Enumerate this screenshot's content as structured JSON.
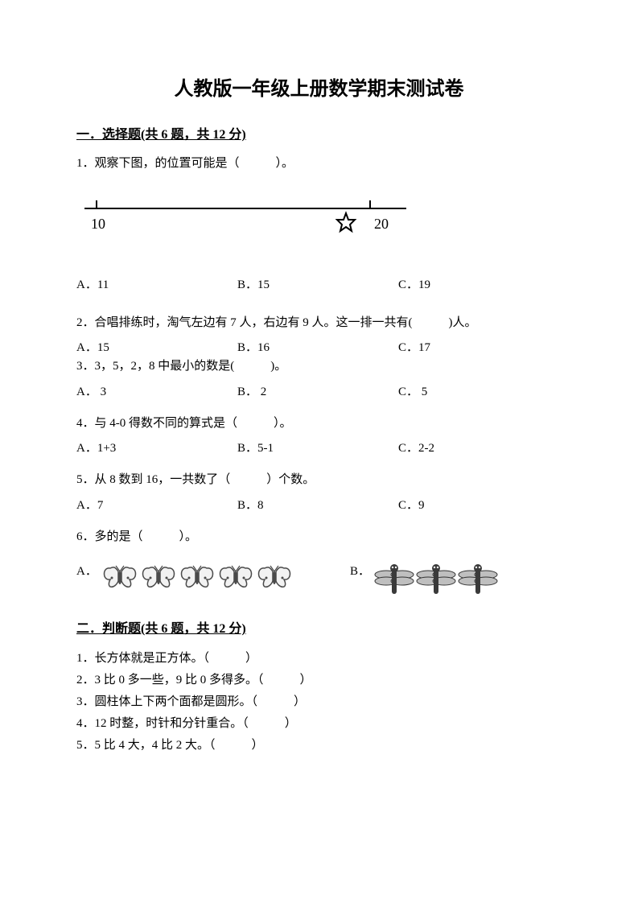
{
  "title": "人教版一年级上册数学期末测试卷",
  "section1": {
    "head_main": "一．选择题",
    "head_paren": "(共 6 题，共 12 分)",
    "q1": {
      "text": "1．观察下图，的位置可能是（　　　）。",
      "numline": {
        "left_label": "10",
        "right_label": "20"
      },
      "A": "A．11",
      "B": "B．15",
      "C": "C．19"
    },
    "q2": {
      "text": "2．合唱排练时，淘气左边有 7 人，右边有 9 人。这一排一共有(　　　)人。",
      "A": "A．15",
      "B": "B．16",
      "C": "C．17"
    },
    "q3": {
      "text": "3．3，5，2，8 中最小的数是(　　　)。",
      "A": "A． 3",
      "B": "B． 2",
      "C": "C． 5"
    },
    "q4": {
      "text": "4．与 4-0 得数不同的算式是（　　　）。",
      "A": "A．1+3",
      "B": "B．5-1",
      "C": "C．2-2"
    },
    "q5": {
      "text": "5．从 8 数到 16，一共数了（　　　）个数。",
      "A": "A．7",
      "B": "B．8",
      "C": "C．9"
    },
    "q6": {
      "text": "6．多的是（　　　）。",
      "A": "A．",
      "B": "B．",
      "butterfly_count": 5,
      "dragonfly_count": 3
    }
  },
  "section2": {
    "head_main": "二．判断题",
    "head_paren": "(共 6 题，共 12 分)",
    "items": [
      "1．长方体就是正方体。（　　　）",
      "2．3 比 0 多一些，9 比 0 多得多。（　　　）",
      "3．圆柱体上下两个面都是圆形。（　　　）",
      "4．12 时整，时针和分针重合。（　　　）",
      "5．5 比 4 大，4 比 2 大。（　　　）"
    ]
  },
  "colors": {
    "text": "#000000",
    "bg": "#ffffff",
    "butterfly_fill": "#f2f2f2",
    "butterfly_stroke": "#4a4a4a",
    "dragonfly_fill": "#3a3a3a",
    "dragonfly_wing": "#bfbfbf"
  }
}
